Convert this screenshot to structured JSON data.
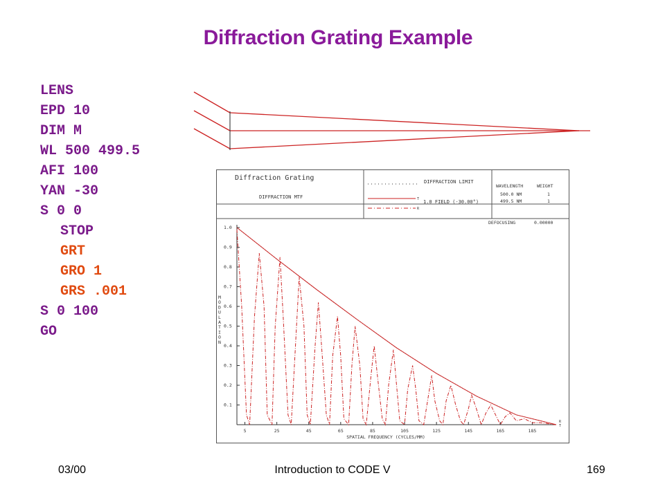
{
  "slide": {
    "title": "Diffraction Grating Example",
    "footer": {
      "date": "03/00",
      "center": "Introduction to CODE V",
      "page": "169"
    },
    "code_lines": [
      {
        "text": "LENS",
        "color": "purple",
        "indent": false
      },
      {
        "text": "EPD 10",
        "color": "purple",
        "indent": false
      },
      {
        "text": "DIM M",
        "color": "purple",
        "indent": false
      },
      {
        "text": "WL 500 499.5",
        "color": "purple",
        "indent": false
      },
      {
        "text": "AFI 100",
        "color": "purple",
        "indent": false
      },
      {
        "text": "YAN -30",
        "color": "purple",
        "indent": false
      },
      {
        "text": "S 0 0",
        "color": "purple",
        "indent": false
      },
      {
        "text": "STOP",
        "color": "purple",
        "indent": true
      },
      {
        "text": "GRT",
        "color": "orange",
        "indent": true
      },
      {
        "text": "GRO 1",
        "color": "orange",
        "indent": true
      },
      {
        "text": "GRS .001",
        "color": "orange",
        "indent": true
      },
      {
        "text": "S 0 100",
        "color": "purple",
        "indent": false
      },
      {
        "text": "GO",
        "color": "purple",
        "indent": false
      }
    ]
  },
  "colors": {
    "title": "#8a1a9a",
    "code_purple": "#7a1a8a",
    "code_orange": "#e04a10",
    "ray": "#cc2222",
    "plot_line": "#cc2222"
  },
  "mtf_header": {
    "plot_title": "Diffraction Grating",
    "plot_subtitle": "DIFFRACTION MTF",
    "legend_diffraction_limit": "DIFFRACTION LIMIT",
    "legend_field": "1.0 FIELD (-30.00°)",
    "legend_t": "T",
    "legend_r": "R",
    "wavelength_header": "WAVELENGTH",
    "weight_header": "WEIGHT",
    "wavelengths": [
      {
        "wl": "500.0 NM",
        "weight": "1"
      },
      {
        "wl": "499.5 NM",
        "weight": "1"
      }
    ],
    "defocusing_label": "DEFOCUSING",
    "defocusing_value": "0.00000"
  },
  "chart_data": {
    "type": "line",
    "title": "",
    "xlabel": "SPATIAL FREQUENCY (CYCLES/MM)",
    "ylabel": "MODULATION",
    "xlim": [
      0,
      200
    ],
    "ylim": [
      0,
      1.0
    ],
    "x_ticks": [
      5,
      25,
      45,
      65,
      85,
      105,
      125,
      145,
      165,
      185
    ],
    "y_ticks": [
      0.1,
      0.2,
      0.3,
      0.4,
      0.5,
      0.6,
      0.7,
      0.8,
      0.9,
      1.0
    ],
    "y_tick_labels": [
      "0.1",
      "0.2",
      "0.3",
      "0.4",
      "0.5",
      "0.6",
      "0.7",
      "0.8",
      "0.9",
      "1.0"
    ],
    "end_labels": [
      "R",
      "T"
    ],
    "series": [
      {
        "style": "dotted",
        "x": [
          0,
          25,
          50,
          75,
          100,
          125,
          150,
          175,
          200
        ],
        "y": [
          1.0,
          0.84,
          0.685,
          0.535,
          0.39,
          0.26,
          0.145,
          0.05,
          0.0
        ]
      },
      {
        "name": "T",
        "style": "solid",
        "x": [
          0,
          25,
          50,
          75,
          100,
          125,
          150,
          175,
          200
        ],
        "y": [
          1.0,
          0.84,
          0.685,
          0.535,
          0.39,
          0.26,
          0.145,
          0.05,
          0.0
        ]
      },
      {
        "name": "R",
        "style": "dash-dot",
        "x": [
          0,
          3,
          6,
          8,
          11,
          14,
          17,
          19,
          22,
          24,
          27,
          29,
          32,
          34,
          37,
          39,
          42,
          44,
          46,
          49,
          51,
          53,
          56,
          58,
          60,
          63,
          65,
          67,
          70,
          72,
          74,
          77,
          79,
          81,
          84,
          86,
          88,
          91,
          93,
          95,
          98,
          100,
          102,
          105,
          107,
          110,
          112,
          114,
          117,
          120,
          122,
          124,
          127,
          129,
          131,
          134,
          137,
          140,
          142,
          145,
          147,
          150,
          153,
          156,
          159,
          162,
          165,
          168,
          171,
          175,
          180,
          185,
          190,
          195,
          200
        ],
        "y": [
          0.99,
          0.6,
          0.05,
          0.0,
          0.55,
          0.87,
          0.6,
          0.05,
          0.0,
          0.5,
          0.85,
          0.55,
          0.05,
          0.0,
          0.45,
          0.75,
          0.5,
          0.05,
          0.0,
          0.4,
          0.62,
          0.4,
          0.05,
          0.0,
          0.35,
          0.55,
          0.35,
          0.03,
          0.0,
          0.3,
          0.5,
          0.3,
          0.03,
          0.0,
          0.25,
          0.4,
          0.25,
          0.03,
          0.0,
          0.2,
          0.38,
          0.2,
          0.02,
          0.0,
          0.18,
          0.3,
          0.18,
          0.02,
          0.0,
          0.15,
          0.25,
          0.12,
          0.02,
          0.0,
          0.12,
          0.2,
          0.1,
          0.02,
          0.0,
          0.08,
          0.15,
          0.08,
          0.0,
          0.06,
          0.1,
          0.05,
          0.0,
          0.04,
          0.06,
          0.02,
          0.03,
          0.01,
          0.01,
          0.005,
          0.0
        ]
      }
    ]
  }
}
